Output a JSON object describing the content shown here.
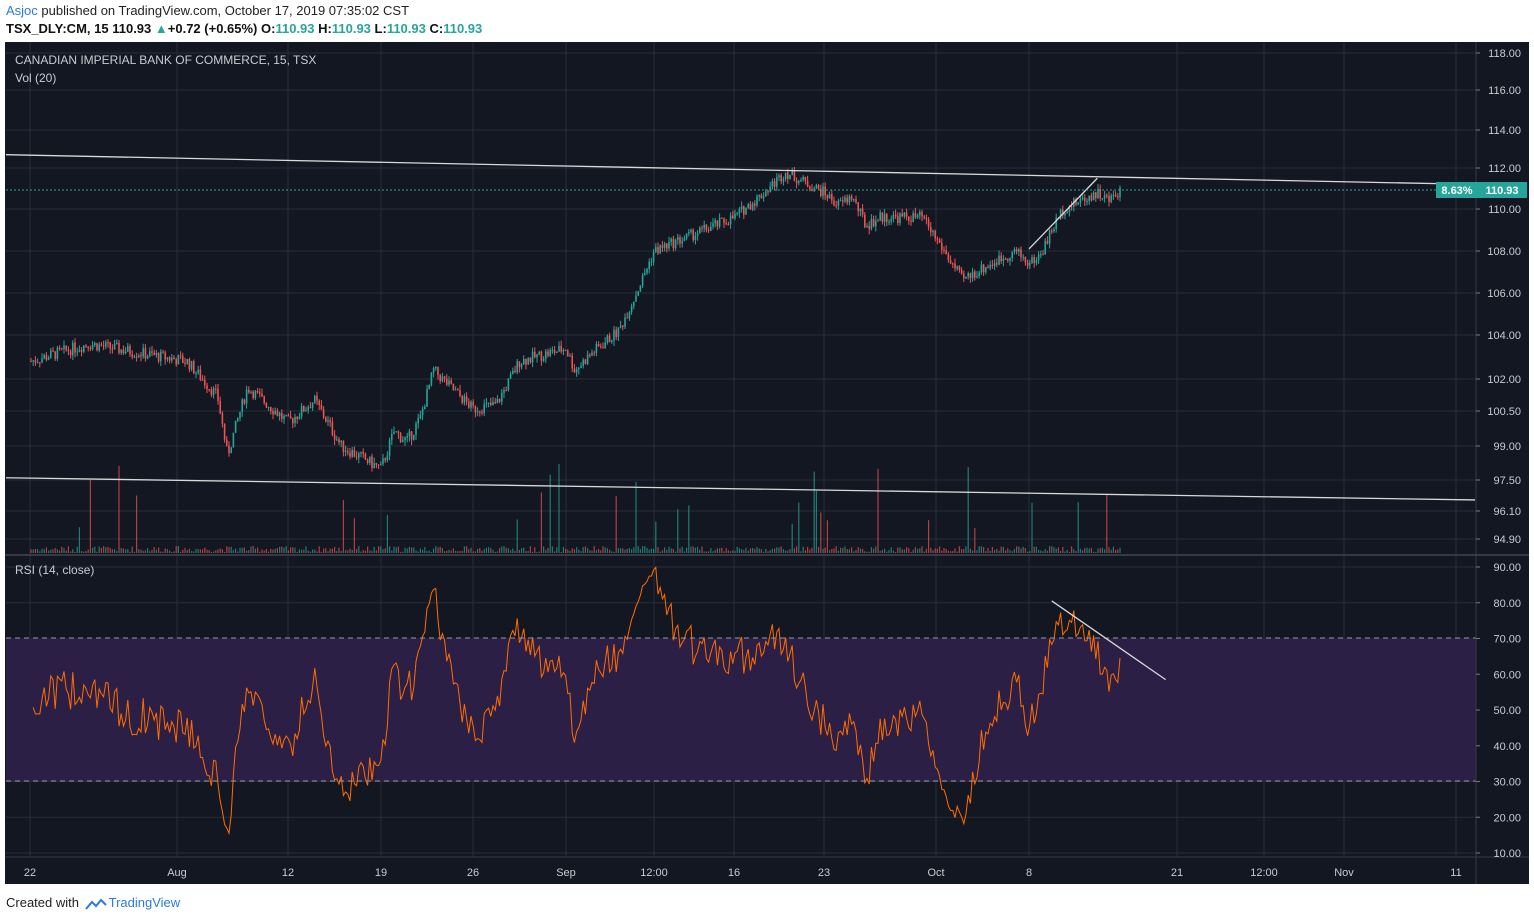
{
  "header": {
    "user": "Asjoc",
    "published": "published on TradingView.com, October 17, 2019 07:35:02 CST",
    "symbol": "TSX_DLY:CM, 15",
    "last": "110.93",
    "change": "+0.72 (+0.65%)",
    "o_label": "O:",
    "o": "110.93",
    "h_label": "H:",
    "h": "110.93",
    "l_label": "L:",
    "l": "110.93",
    "c_label": "C:",
    "c": "110.93"
  },
  "footer": {
    "created": "Created with",
    "brand": "TradingView"
  },
  "colors": {
    "bg": "#131722",
    "grid": "#2a2e39",
    "up": "#26a69a",
    "down": "#ef5350",
    "rsi": "#ff6d00",
    "rsi_band": "#2b1f45",
    "trend": "#d9d9d9",
    "price_tag": "#26a69a"
  },
  "chart_data": {
    "type": "candlestick",
    "title": "CANADIAN IMPERIAL BANK OF COMMERCE, 15, TSX",
    "volume_label": "Vol (20)",
    "rsi_label": "RSI (14, close)",
    "price_axis_ticks": [
      "118.00",
      "116.00",
      "114.00",
      "112.00",
      "110.00",
      "108.00",
      "106.00",
      "104.00",
      "102.00",
      "100.50",
      "99.00",
      "97.50",
      "96.10",
      "94.90"
    ],
    "rsi_axis_ticks": [
      "90.00",
      "80.00",
      "70.00",
      "60.00",
      "50.00",
      "40.00",
      "30.00",
      "20.00",
      "10.00"
    ],
    "time_ticks": [
      "22",
      "Aug",
      "12",
      "19",
      "26",
      "Sep",
      "12:00",
      "16",
      "23",
      "Oct",
      "8",
      "21",
      "12:00",
      "Nov",
      "11"
    ],
    "last_price_label": "110.93",
    "last_price_pct": "8.63%",
    "close_path": [
      [
        "Jul 22",
        102.8
      ],
      [
        "Jul 26",
        103.6
      ],
      [
        "Jul 31",
        103.0
      ],
      [
        "Aug 2",
        102.8
      ],
      [
        "Aug 5",
        101.2
      ],
      [
        "Aug 6",
        98.6
      ],
      [
        "Aug 8",
        101.6
      ],
      [
        "Aug 12",
        100.0
      ],
      [
        "Aug 14",
        101.0
      ],
      [
        "Aug 16",
        99.0
      ],
      [
        "Aug 19",
        98.0
      ],
      [
        "Aug 20",
        99.6
      ],
      [
        "Aug 21",
        99.2
      ],
      [
        "Aug 22",
        100.2
      ],
      [
        "Aug 23",
        102.4
      ],
      [
        "Aug 26",
        100.6
      ],
      [
        "Aug 28",
        100.8
      ],
      [
        "Aug 30",
        102.8
      ],
      [
        "Sep 3",
        103.4
      ],
      [
        "Sep 4",
        102.4
      ],
      [
        "Sep 6",
        103.2
      ],
      [
        "Sep 9",
        104.2
      ],
      [
        "Sep 11",
        106.0
      ],
      [
        "Sep 13",
        108.0
      ],
      [
        "Sep 16",
        109.6
      ],
      [
        "Sep 18",
        110.6
      ],
      [
        "Sep 20",
        111.8
      ],
      [
        "Sep 23",
        110.8
      ],
      [
        "Sep 24",
        110.2
      ],
      [
        "Sep 25",
        110.6
      ],
      [
        "Sep 26",
        109.2
      ],
      [
        "Sep 27",
        109.6
      ],
      [
        "Sep 30",
        109.6
      ],
      [
        "Oct 1",
        108.6
      ],
      [
        "Oct 3",
        106.6
      ],
      [
        "Oct 4",
        107.0
      ],
      [
        "Oct 7",
        108.0
      ],
      [
        "Oct 8",
        107.4
      ],
      [
        "Oct 9",
        107.8
      ],
      [
        "Oct 10",
        109.0
      ],
      [
        "Oct 11",
        110.0
      ],
      [
        "Oct 14",
        110.8
      ],
      [
        "Oct 15",
        110.4
      ],
      [
        "Oct 16",
        110.93
      ]
    ],
    "rsi_overbought": 70,
    "rsi_oversold": 30,
    "trendlines": [
      {
        "name": "upper",
        "from": [
          "Jul 18",
          112.7
        ],
        "to": [
          "Nov 13",
          111.2
        ]
      },
      {
        "name": "lower",
        "from": [
          "Jul 18",
          97.6
        ],
        "to": [
          "Nov 13",
          96.6
        ]
      },
      {
        "name": "rising-wedge-edge",
        "from": [
          "Oct 8",
          108.1
        ],
        "to": [
          "Oct 14",
          111.5
        ]
      },
      {
        "name": "rsi-falling",
        "from": [
          "Oct 10",
          80.5
        ],
        "to": [
          "Oct 20",
          58.5
        ]
      }
    ]
  }
}
